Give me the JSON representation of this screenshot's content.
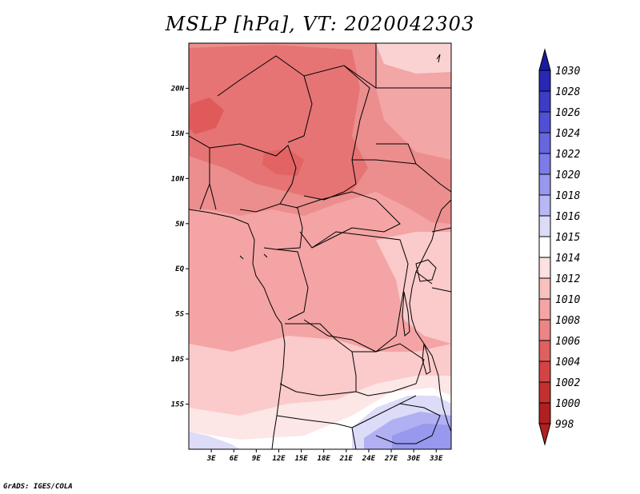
{
  "title": "MSLP [hPa], VT: 2020042303",
  "credit": "GrADS: IGES/COLA",
  "map": {
    "lat_labels": [
      "20N",
      "15N",
      "10N",
      "5N",
      "EQ",
      "5S",
      "10S",
      "15S"
    ],
    "lon_labels": [
      "3E",
      "6E",
      "9E",
      "12E",
      "15E",
      "18E",
      "21E",
      "24E",
      "27E",
      "30E",
      "33E"
    ],
    "lat_range_deg": [
      -20,
      25
    ],
    "lon_range_deg": [
      0,
      35
    ]
  },
  "colorbar": {
    "levels": [
      "1030",
      "1028",
      "1026",
      "1024",
      "1022",
      "1020",
      "1018",
      "1016",
      "1015",
      "1014",
      "1012",
      "1010",
      "1008",
      "1006",
      "1004",
      "1002",
      "1000",
      "998"
    ],
    "colors": [
      "#1a1aa0",
      "#2828b4",
      "#3c3cc6",
      "#5050d6",
      "#6666e0",
      "#7c7ce8",
      "#9898ee",
      "#b8b8f4",
      "#dcdcf8",
      "#ffffff",
      "#fde0e0",
      "#f9c0c0",
      "#f4a4a4",
      "#ec8686",
      "#e06060",
      "#d44444",
      "#c43030",
      "#b02020"
    ]
  }
}
